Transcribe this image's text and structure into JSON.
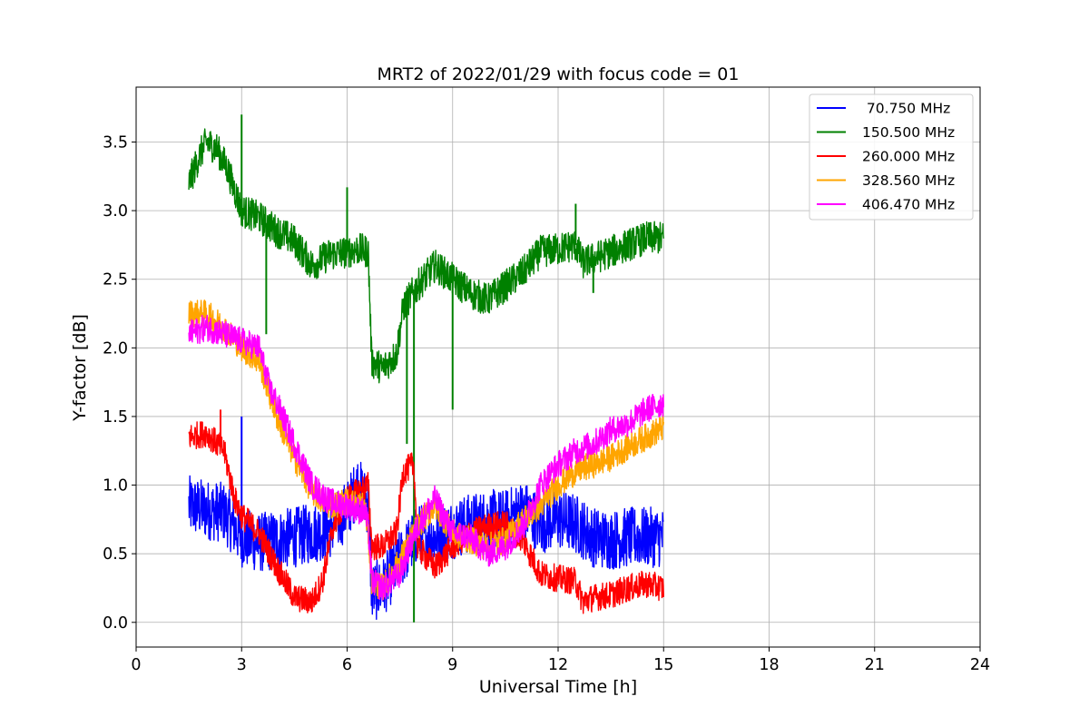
{
  "chart_data": {
    "type": "line",
    "title": "MRT2 of 2022/01/29 with focus code = 01",
    "xlabel": "Universal Time [h]",
    "ylabel": "Y-factor [dB]",
    "xlim": [
      0,
      24
    ],
    "ylim": [
      -0.18,
      3.9
    ],
    "xticks": [
      0,
      3,
      6,
      9,
      12,
      15,
      18,
      21,
      24
    ],
    "xtick_labels": [
      "0",
      "3",
      "6",
      "9",
      "12",
      "15",
      "18",
      "21",
      "24"
    ],
    "yticks": [
      0.0,
      0.5,
      1.0,
      1.5,
      2.0,
      2.5,
      3.0,
      3.5
    ],
    "ytick_labels": [
      "0.0",
      "0.5",
      "1.0",
      "1.5",
      "2.0",
      "2.5",
      "3.0",
      "3.5"
    ],
    "grid": true,
    "legend_position": "top-right",
    "series": [
      {
        "name": " 70.750 MHz",
        "color": "#0000ff",
        "noise": 0.22,
        "x": [
          1.5,
          2.0,
          2.5,
          3.0,
          3.5,
          4.0,
          4.5,
          5.0,
          5.5,
          6.0,
          6.3,
          6.6,
          6.7,
          7.0,
          7.5,
          8.0,
          8.5,
          9.0,
          9.5,
          10.0,
          10.5,
          11.0,
          11.5,
          12.0,
          12.5,
          13.0,
          13.5,
          14.0,
          14.5,
          15.0
        ],
        "y": [
          0.85,
          0.82,
          0.8,
          0.62,
          0.58,
          0.6,
          0.62,
          0.65,
          0.68,
          0.82,
          1.0,
          0.85,
          0.22,
          0.25,
          0.45,
          0.65,
          0.62,
          0.68,
          0.72,
          0.75,
          0.75,
          0.82,
          0.72,
          0.75,
          0.72,
          0.62,
          0.6,
          0.62,
          0.62,
          0.62
        ],
        "spikes": [
          {
            "x": 3.0,
            "y": 1.5
          }
        ]
      },
      {
        "name": "150.500 MHz",
        "color": "#008000",
        "noise": 0.12,
        "x": [
          1.5,
          1.8,
          2.0,
          2.3,
          2.6,
          3.0,
          3.5,
          4.0,
          4.5,
          5.0,
          5.5,
          6.0,
          6.3,
          6.6,
          6.7,
          7.0,
          7.4,
          7.6,
          8.0,
          8.5,
          9.0,
          9.5,
          10.0,
          10.5,
          11.0,
          11.5,
          12.0,
          12.5,
          12.7,
          13.0,
          13.5,
          14.0,
          14.5,
          15.0
        ],
        "y": [
          3.2,
          3.4,
          3.5,
          3.45,
          3.3,
          3.0,
          2.95,
          2.85,
          2.78,
          2.6,
          2.68,
          2.7,
          2.72,
          2.7,
          1.9,
          1.85,
          1.95,
          2.3,
          2.45,
          2.6,
          2.5,
          2.4,
          2.35,
          2.45,
          2.55,
          2.7,
          2.72,
          2.75,
          2.62,
          2.65,
          2.7,
          2.75,
          2.8,
          2.8
        ],
        "spikes": [
          {
            "x": 3.0,
            "y": 3.7
          },
          {
            "x": 3.7,
            "y": 2.1
          },
          {
            "x": 6.0,
            "y": 3.17
          },
          {
            "x": 7.7,
            "y": 1.3
          },
          {
            "x": 7.9,
            "y": 0.0
          },
          {
            "x": 9.0,
            "y": 1.55
          },
          {
            "x": 12.5,
            "y": 3.05
          },
          {
            "x": 13.0,
            "y": 2.4
          }
        ]
      },
      {
        "name": "260.000 MHz",
        "color": "#ff0000",
        "noise": 0.1,
        "x": [
          1.5,
          2.0,
          2.5,
          2.8,
          3.0,
          3.5,
          4.0,
          4.5,
          5.0,
          5.3,
          5.6,
          6.0,
          6.3,
          6.6,
          6.7,
          7.0,
          7.4,
          7.6,
          7.9,
          8.0,
          8.5,
          9.0,
          9.5,
          10.0,
          10.5,
          11.0,
          11.5,
          12.0,
          12.5,
          12.7,
          13.0,
          13.5,
          14.0,
          14.5,
          15.0
        ],
        "y": [
          1.35,
          1.38,
          1.25,
          0.9,
          0.78,
          0.65,
          0.4,
          0.18,
          0.15,
          0.3,
          0.7,
          0.9,
          0.95,
          1.0,
          0.55,
          0.55,
          0.65,
          1.1,
          1.15,
          0.55,
          0.4,
          0.55,
          0.65,
          0.7,
          0.72,
          0.6,
          0.35,
          0.32,
          0.3,
          0.15,
          0.18,
          0.2,
          0.25,
          0.28,
          0.25
        ],
        "spikes": [
          {
            "x": 2.4,
            "y": 1.55
          }
        ]
      },
      {
        "name": "328.560 MHz",
        "color": "#ffa500",
        "noise": 0.1,
        "x": [
          1.5,
          2.0,
          2.5,
          3.0,
          3.5,
          4.0,
          4.5,
          5.0,
          5.5,
          6.0,
          6.5,
          6.6,
          6.7,
          7.0,
          7.5,
          8.0,
          8.5,
          9.0,
          9.5,
          10.0,
          10.5,
          11.0,
          11.5,
          12.0,
          12.5,
          13.0,
          13.5,
          14.0,
          14.5,
          15.0
        ],
        "y": [
          2.25,
          2.25,
          2.15,
          2.0,
          1.9,
          1.5,
          1.2,
          0.95,
          0.85,
          0.88,
          0.85,
          0.65,
          0.3,
          0.25,
          0.45,
          0.7,
          0.85,
          0.65,
          0.6,
          0.55,
          0.6,
          0.75,
          0.85,
          1.0,
          1.1,
          1.15,
          1.2,
          1.28,
          1.35,
          1.42
        ],
        "spikes": []
      },
      {
        "name": "406.470 MHz",
        "color": "#ff00ff",
        "noise": 0.1,
        "x": [
          1.5,
          2.0,
          2.5,
          3.0,
          3.5,
          3.8,
          4.0,
          4.5,
          5.0,
          5.5,
          6.0,
          6.5,
          6.6,
          6.7,
          7.0,
          7.5,
          8.0,
          8.5,
          9.0,
          9.5,
          10.0,
          10.5,
          11.0,
          11.5,
          12.0,
          12.5,
          13.0,
          13.5,
          14.0,
          14.5,
          15.0
        ],
        "y": [
          2.1,
          2.15,
          2.1,
          2.05,
          2.0,
          1.7,
          1.6,
          1.3,
          1.0,
          0.88,
          0.85,
          0.8,
          0.7,
          0.3,
          0.25,
          0.35,
          0.7,
          0.9,
          0.65,
          0.62,
          0.5,
          0.55,
          0.7,
          1.0,
          1.15,
          1.25,
          1.3,
          1.4,
          1.45,
          1.55,
          1.6
        ],
        "spikes": []
      }
    ]
  }
}
